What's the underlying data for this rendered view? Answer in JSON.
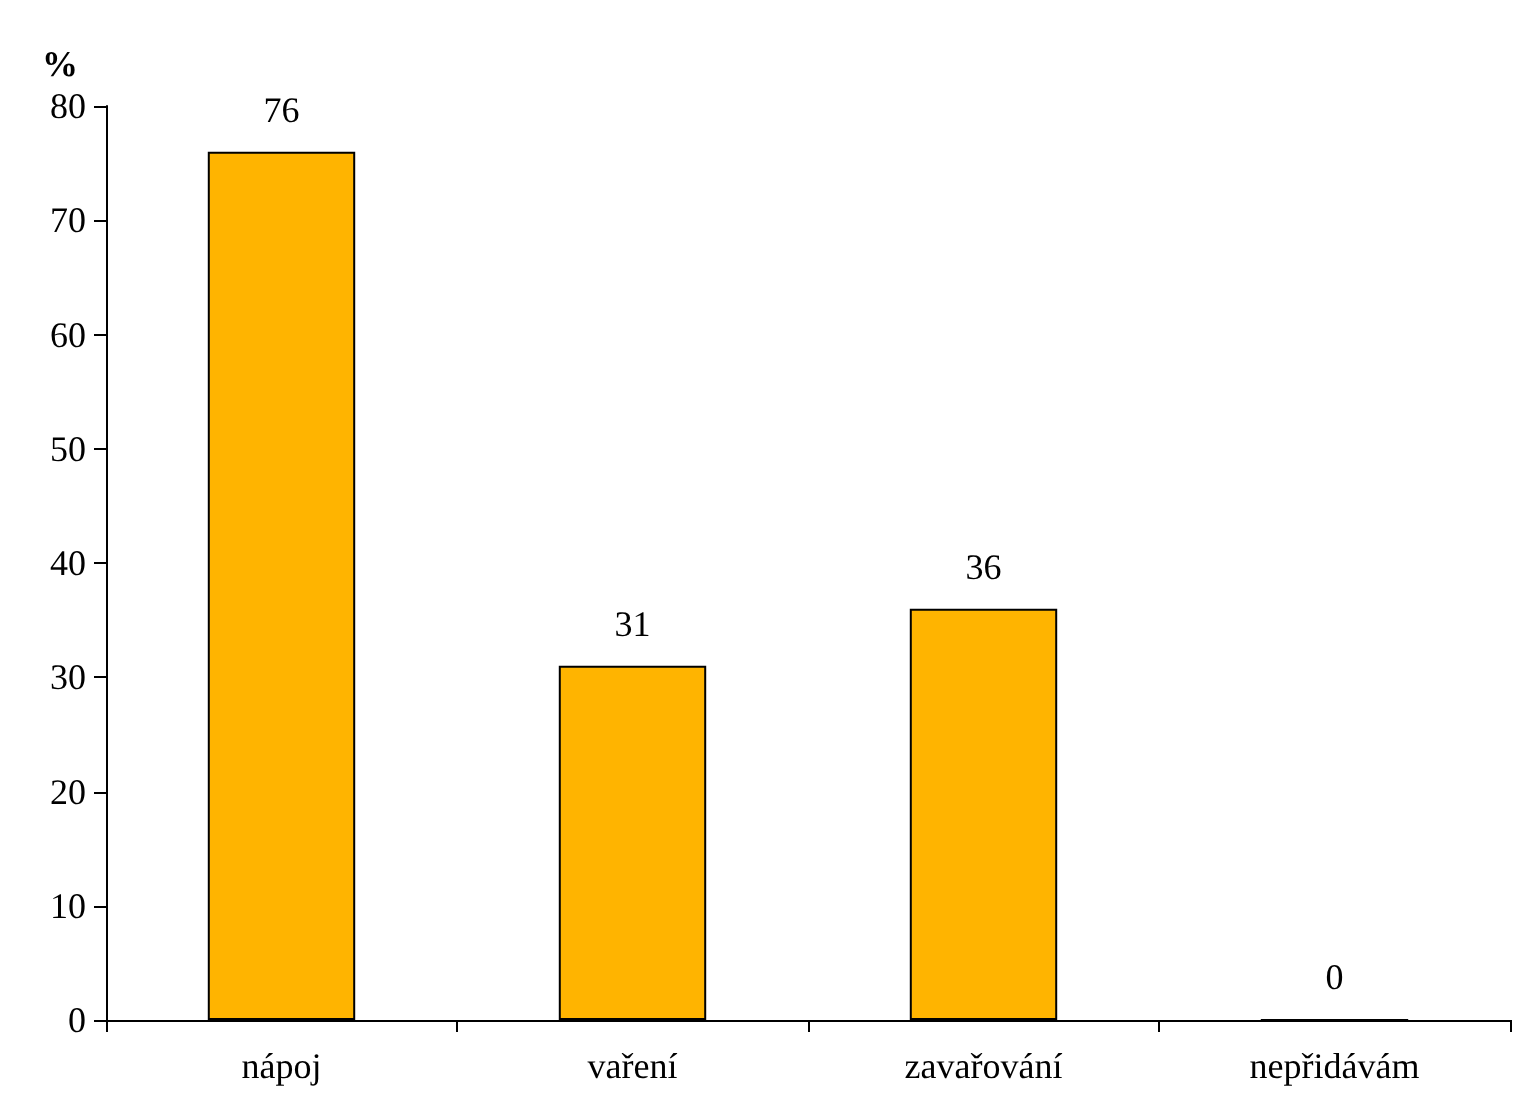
{
  "chart_data": {
    "type": "bar",
    "ylabel": "%",
    "categories": [
      "nápoj",
      "vaření",
      "zavařování",
      "nepřidávám"
    ],
    "values": [
      76,
      31,
      36,
      0
    ],
    "color": "#ffb400",
    "ylim": [
      0,
      80
    ],
    "yticks": [
      0,
      10,
      20,
      30,
      40,
      50,
      60,
      70,
      80
    ],
    "data_labels": true
  }
}
